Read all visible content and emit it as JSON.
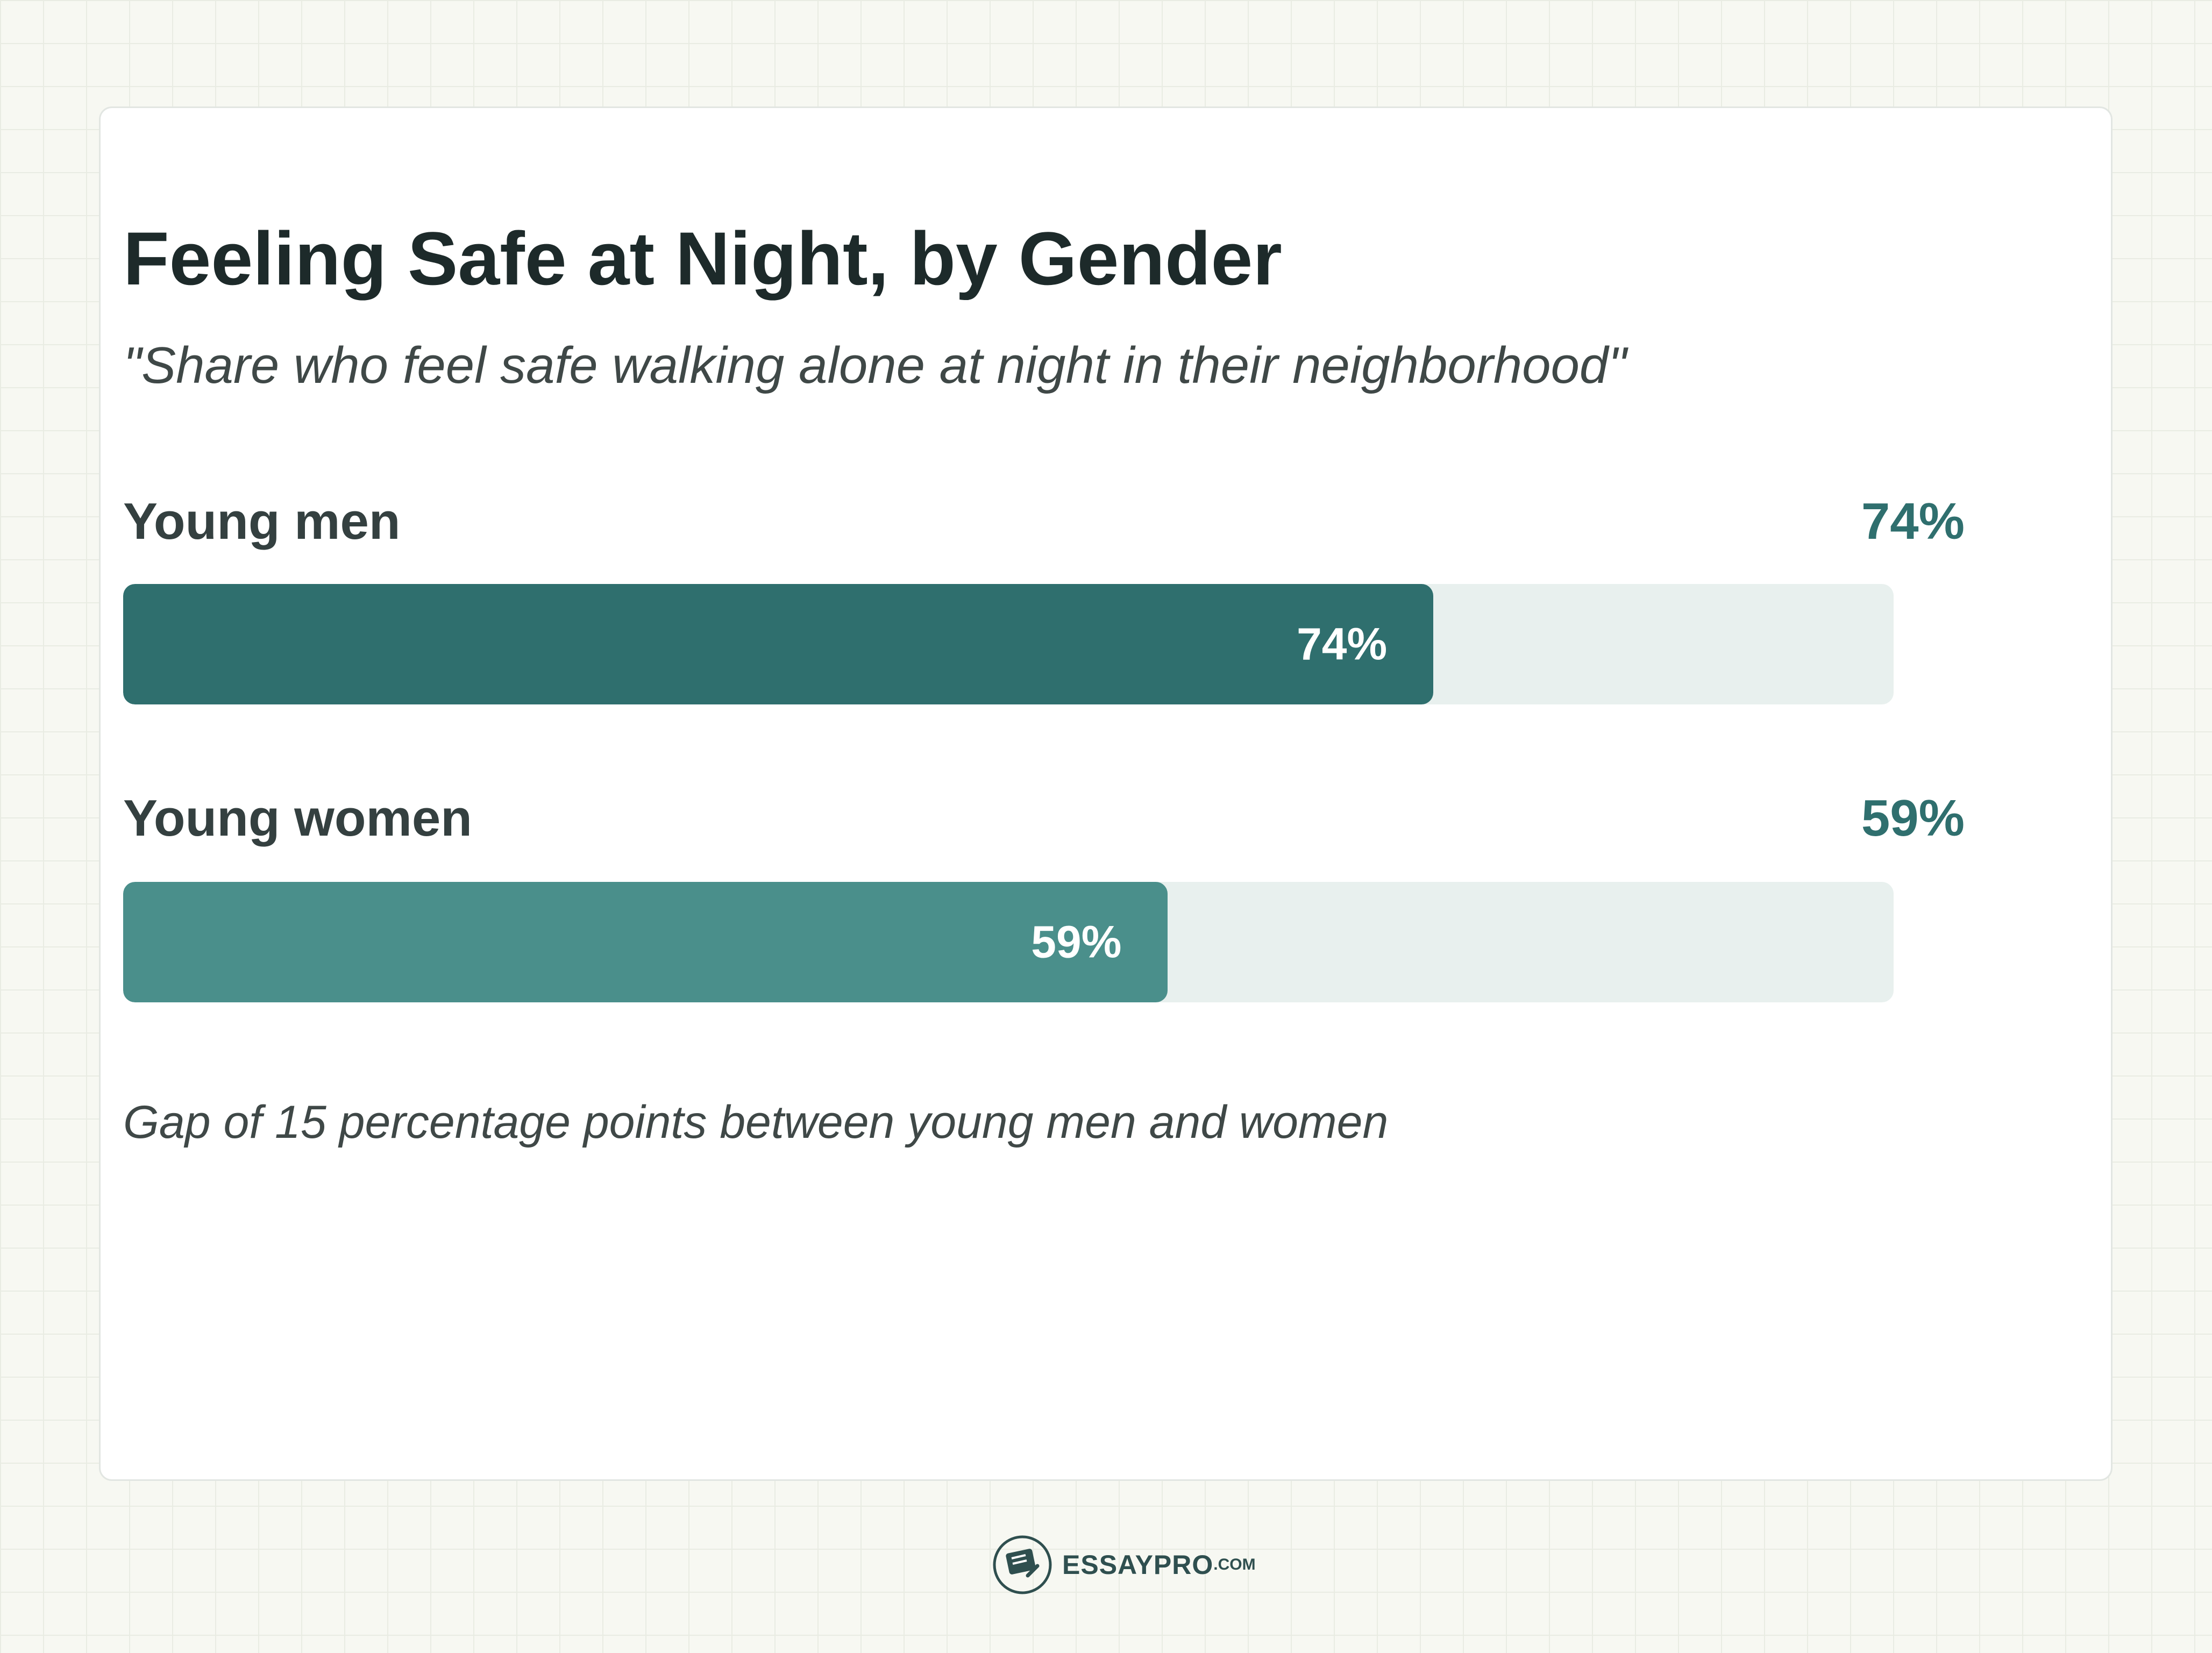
{
  "chart_data": {
    "type": "bar",
    "orientation": "horizontal",
    "title": "Feeling Safe at Night, by Gender",
    "subtitle": "\"Share who feel safe walking alone at night in their neighborhood\"",
    "categories": [
      "Young men",
      "Young women"
    ],
    "values": [
      74,
      59
    ],
    "value_labels": [
      "74%",
      "59%"
    ],
    "xlim": [
      0,
      100
    ],
    "unit": "%",
    "annotation": "Gap of 15 percentage points between young men and women",
    "colors": [
      "#2f6f6e",
      "#4a8f8b"
    ],
    "track_color": "#e8f0ee",
    "value_text_color": "#2f6f6e",
    "grid": false,
    "legend": "none"
  },
  "brand": {
    "name": "ESSAYPRO",
    "suffix": ".COM",
    "icon": "essaypro-logo-icon"
  }
}
